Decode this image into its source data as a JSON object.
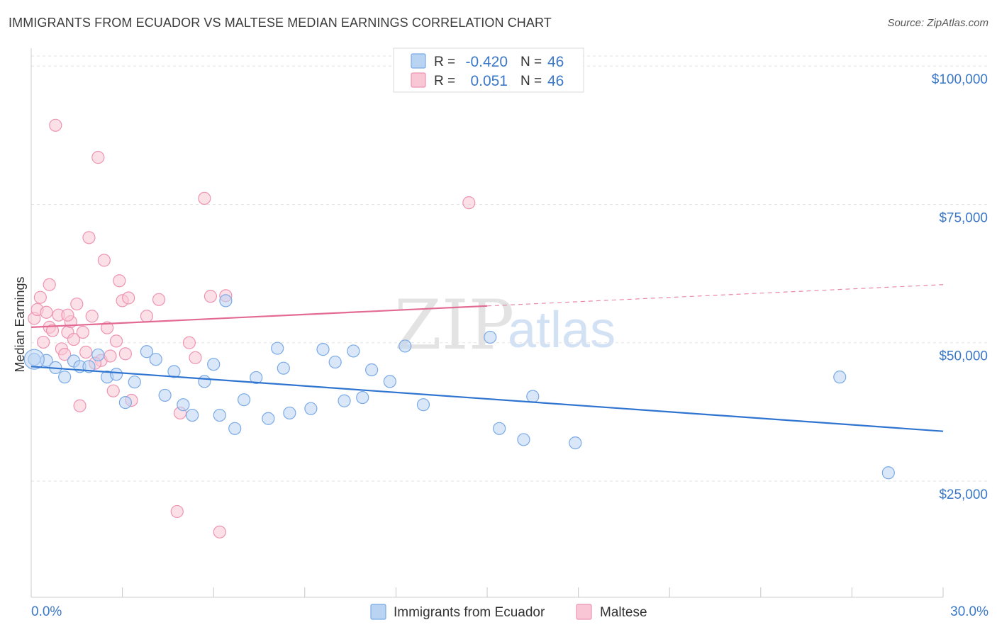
{
  "header": {
    "title": "IMMIGRANTS FROM ECUADOR VS MALTESE MEDIAN EARNINGS CORRELATION CHART",
    "source": "Source: ZipAtlas.com"
  },
  "watermark": {
    "zip": "ZIP",
    "atlas": "atlas"
  },
  "colors": {
    "blue_fill": "#b9d3f3",
    "blue_stroke": "#7aaae6",
    "blue_line": "#2f74d0",
    "pink_fill": "#f9c6d6",
    "pink_stroke": "#ee94b2",
    "pink_line": "#e36a93",
    "tick_text": "#3b78c8",
    "grid": "#e3e3e3"
  },
  "legend": {
    "rows": [
      {
        "r_label": "R =",
        "r_value": "-0.420",
        "n_label": "N =",
        "n_value": "46"
      },
      {
        "r_label": "R =",
        "r_value": "0.051",
        "n_label": "N =",
        "n_value": "46"
      }
    ]
  },
  "bottom_legend": {
    "series1": "Immigrants from Ecuador",
    "series2": "Maltese"
  },
  "chart_data": {
    "type": "scatter",
    "xlabel": "",
    "ylabel": "Median Earnings",
    "xlim": [
      0,
      30
    ],
    "ylim": [
      4000,
      104000
    ],
    "x_tick_labels": {
      "left": "0.0%",
      "right": "30.0%"
    },
    "y_ticks": [
      {
        "value": 25000,
        "label": "$25,000"
      },
      {
        "value": 50000,
        "label": "$50,000"
      },
      {
        "value": 75000,
        "label": "$75,000"
      },
      {
        "value": 100000,
        "label": "$100,000"
      }
    ],
    "grid": true,
    "legend_position": "top-center",
    "series": [
      {
        "name": "Immigrants from Ecuador",
        "color": "blue",
        "trend": {
          "x0": 0.0,
          "y0": 45700,
          "x1": 30.0,
          "y1": 34000,
          "solid_until": 30.0
        },
        "points": [
          [
            0.1,
            47000
          ],
          [
            0.5,
            46800
          ],
          [
            0.8,
            45500
          ],
          [
            1.1,
            43800
          ],
          [
            1.4,
            46700
          ],
          [
            1.6,
            45700
          ],
          [
            1.9,
            45700
          ],
          [
            2.2,
            47800
          ],
          [
            2.5,
            43800
          ],
          [
            2.8,
            44300
          ],
          [
            3.1,
            39200
          ],
          [
            3.4,
            42900
          ],
          [
            3.8,
            48400
          ],
          [
            4.1,
            47000
          ],
          [
            4.4,
            40500
          ],
          [
            4.7,
            44800
          ],
          [
            5.0,
            38800
          ],
          [
            5.3,
            36900
          ],
          [
            5.7,
            43000
          ],
          [
            6.0,
            46100
          ],
          [
            6.2,
            36900
          ],
          [
            6.4,
            57600
          ],
          [
            6.7,
            34500
          ],
          [
            7.0,
            39700
          ],
          [
            7.4,
            43700
          ],
          [
            7.8,
            36300
          ],
          [
            8.1,
            49000
          ],
          [
            8.3,
            45400
          ],
          [
            8.5,
            37300
          ],
          [
            9.2,
            38100
          ],
          [
            9.6,
            48800
          ],
          [
            10.0,
            46500
          ],
          [
            10.3,
            39500
          ],
          [
            10.6,
            48500
          ],
          [
            10.9,
            40100
          ],
          [
            11.2,
            45100
          ],
          [
            11.8,
            43000
          ],
          [
            12.3,
            49400
          ],
          [
            12.9,
            38800
          ],
          [
            15.1,
            51000
          ],
          [
            15.4,
            34500
          ],
          [
            16.2,
            32500
          ],
          [
            16.5,
            40300
          ],
          [
            17.9,
            31900
          ],
          [
            26.6,
            43800
          ],
          [
            28.2,
            26500
          ]
        ]
      },
      {
        "name": "Maltese",
        "color": "pink",
        "trend": {
          "x0": 0.0,
          "y0": 52800,
          "x1": 30.0,
          "y1": 60500,
          "solid_until": 15.0
        },
        "points": [
          [
            0.1,
            54400
          ],
          [
            0.2,
            56000
          ],
          [
            0.3,
            58200
          ],
          [
            0.4,
            50100
          ],
          [
            0.5,
            55500
          ],
          [
            0.6,
            52800
          ],
          [
            0.7,
            52200
          ],
          [
            0.8,
            89300
          ],
          [
            0.9,
            55000
          ],
          [
            1.0,
            48900
          ],
          [
            1.1,
            47900
          ],
          [
            1.2,
            51900
          ],
          [
            1.3,
            53800
          ],
          [
            1.4,
            50600
          ],
          [
            1.5,
            57000
          ],
          [
            1.6,
            38600
          ],
          [
            1.7,
            51900
          ],
          [
            1.8,
            48300
          ],
          [
            1.9,
            69000
          ],
          [
            2.0,
            54800
          ],
          [
            2.2,
            83500
          ],
          [
            2.3,
            46800
          ],
          [
            2.4,
            64900
          ],
          [
            2.5,
            52700
          ],
          [
            2.6,
            47600
          ],
          [
            2.7,
            41300
          ],
          [
            2.8,
            50300
          ],
          [
            2.9,
            61200
          ],
          [
            3.0,
            57600
          ],
          [
            3.2,
            58100
          ],
          [
            3.3,
            39600
          ],
          [
            3.8,
            54800
          ],
          [
            4.2,
            57800
          ],
          [
            4.8,
            19500
          ],
          [
            4.9,
            37300
          ],
          [
            5.2,
            50000
          ],
          [
            5.4,
            47300
          ],
          [
            5.7,
            76100
          ],
          [
            5.9,
            58400
          ],
          [
            6.2,
            15800
          ],
          [
            6.4,
            58500
          ],
          [
            14.4,
            75300
          ],
          [
            1.2,
            55000
          ],
          [
            2.1,
            46300
          ],
          [
            0.6,
            60500
          ],
          [
            3.1,
            48000
          ]
        ]
      }
    ]
  }
}
